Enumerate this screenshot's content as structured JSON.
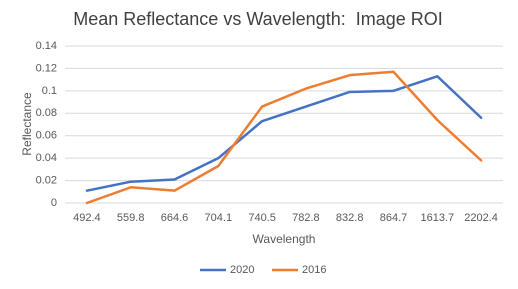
{
  "chart_data": {
    "type": "line",
    "title": "Mean Reflectance vs Wavelength:  Image ROI",
    "x_label": "Wavelength",
    "y_label": "Reflectance",
    "categories": [
      "492.4",
      "559.8",
      "664.6",
      "704.1",
      "740.5",
      "782.8",
      "832.8",
      "864.7",
      "1613.7",
      "2202.4"
    ],
    "series": [
      {
        "name": "2020",
        "color": "#4472c4",
        "values": [
          0.011,
          0.019,
          0.021,
          0.04,
          0.073,
          0.086,
          0.099,
          0.1,
          0.113,
          0.076
        ]
      },
      {
        "name": "2016",
        "color": "#ed7d31",
        "values": [
          0.0,
          0.014,
          0.011,
          0.033,
          0.086,
          0.102,
          0.114,
          0.117,
          0.074,
          0.038
        ]
      }
    ],
    "ylim": [
      0,
      0.14
    ],
    "yticks": [
      0,
      0.02,
      0.04,
      0.06,
      0.08,
      0.1,
      0.12,
      0.14
    ],
    "grid": true,
    "legend": "bottom"
  }
}
